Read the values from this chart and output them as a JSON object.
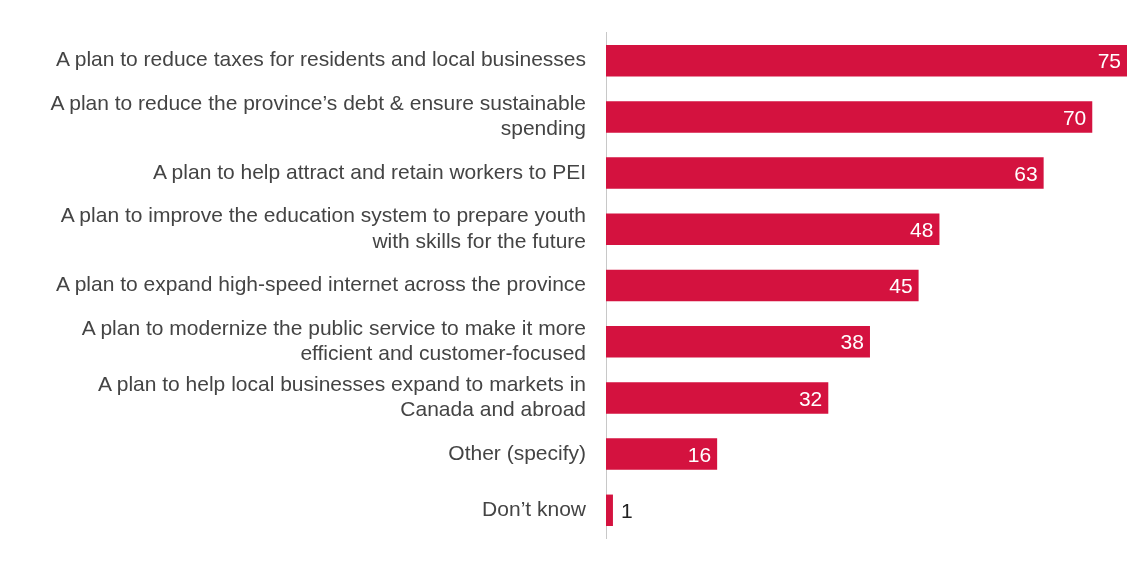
{
  "chart_data": {
    "type": "bar",
    "orientation": "horizontal",
    "categories": [
      "A plan to reduce taxes for residents and local businesses",
      "A plan to reduce the province’s debt & ensure sustainable spending",
      "A plan to help attract and retain workers to PEI",
      "A plan to improve the education system to prepare youth with skills for the future",
      "A plan to expand high-speed internet across the province",
      "A plan to modernize the public service to make it more efficient and customer-focused",
      "A plan to help local businesses expand to markets in Canada and abroad",
      "Other (specify)",
      "Don’t know"
    ],
    "values": [
      75,
      70,
      63,
      48,
      45,
      38,
      32,
      16,
      1
    ],
    "color": "#d4123f",
    "xlim": [
      0,
      75
    ],
    "data_labels": true,
    "legend": false,
    "tick_labels": "y"
  }
}
